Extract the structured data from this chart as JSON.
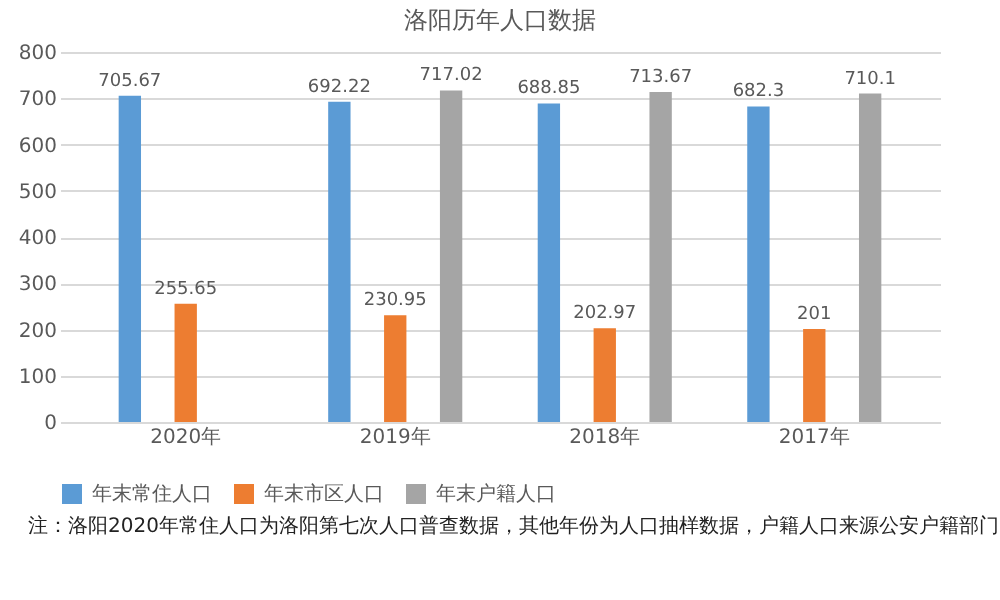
{
  "chart_data": {
    "type": "bar",
    "title": "洛阳历年人口数据",
    "categories": [
      "2020年",
      "2019年",
      "2018年",
      "2017年"
    ],
    "series": [
      {
        "name": "年末常住人口",
        "color": "#5b9bd5",
        "values": [
          705.67,
          692.22,
          688.85,
          682.3
        ]
      },
      {
        "name": "年末市区人口",
        "color": "#ed7d31",
        "values": [
          255.65,
          230.95,
          202.97,
          201
        ]
      },
      {
        "name": "年末户籍人口",
        "color": "#a5a5a5",
        "values": [
          null,
          717.02,
          713.67,
          710.1
        ]
      }
    ],
    "ylim": [
      0,
      800
    ],
    "yticks": [
      0,
      100,
      200,
      300,
      400,
      500,
      600,
      700,
      800
    ],
    "grid": "y",
    "legend": "bottom",
    "data_labels": true,
    "annotations": [
      "注：洛阳2020年常住人口为洛阳第七次人口普查数据，其他年份为人口抽样数据，户籍人口来源公安户籍部门"
    ]
  }
}
